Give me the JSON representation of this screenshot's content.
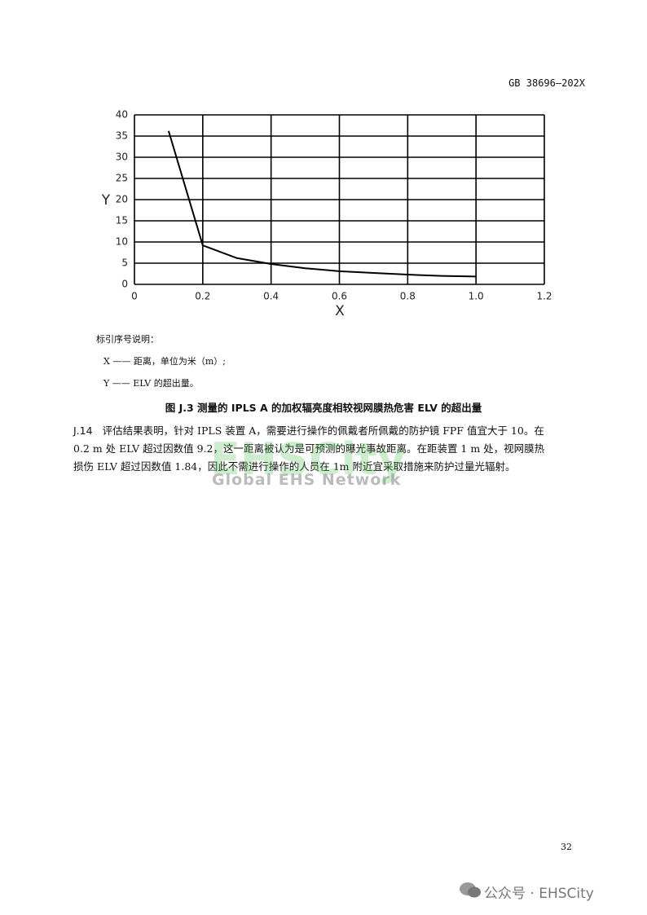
{
  "header": {
    "standard": "GB 38696—202X"
  },
  "chart_data": {
    "type": "line",
    "x_label": "X",
    "y_label": "Y",
    "x": [
      0.1,
      0.2,
      0.3,
      0.4,
      0.5,
      0.6,
      0.7,
      0.8,
      0.9,
      1.0
    ],
    "series": [
      {
        "color": "#000000",
        "values": [
          36.2,
          9.2,
          6.2,
          4.8,
          3.8,
          3.1,
          2.7,
          2.3,
          2.0,
          1.84
        ]
      }
    ],
    "xlim": [
      0,
      1.2
    ],
    "xticks": [
      0,
      0.2,
      0.4,
      0.6,
      0.8,
      {
        "value": 1,
        "label": "1.0"
      },
      1.2
    ],
    "ylim": [
      0,
      40
    ],
    "yticks": [
      0,
      5,
      10,
      15,
      20,
      25,
      30,
      35,
      40
    ],
    "grid": true
  },
  "key": {
    "title": "标引序号说明：",
    "items": [
      "X —— 距离，单位为米（m）;",
      "Y —— ELV 的超出量。"
    ]
  },
  "caption": "图 J.3 测量的 IPLS A 的加权辐亮度相较视网膜热危害 ELV 的超出量",
  "paragraph": {
    "number": "J.14",
    "lines": [
      "评估结果表明，针对 IPLS 装置 A，需要进行操作的佩戴者所佩戴的防护镜 FPF 值宜大于 10。在",
      "0.2 m 处 ELV 超过因数值 9.2，这一距离被认为是可预测的曝光事故距离。在距装置 1 m 处，视网膜热",
      "损伤 ELV 超过因数值 1.84，因此不需进行操作的人员在 1m 附近宜采取措施来防护过量光辐射。"
    ]
  },
  "watermark": {
    "brand": "EHSCity",
    "tagline": "Global EHS Network"
  },
  "page_number": "32",
  "footer": "公众号 · EHSCity"
}
